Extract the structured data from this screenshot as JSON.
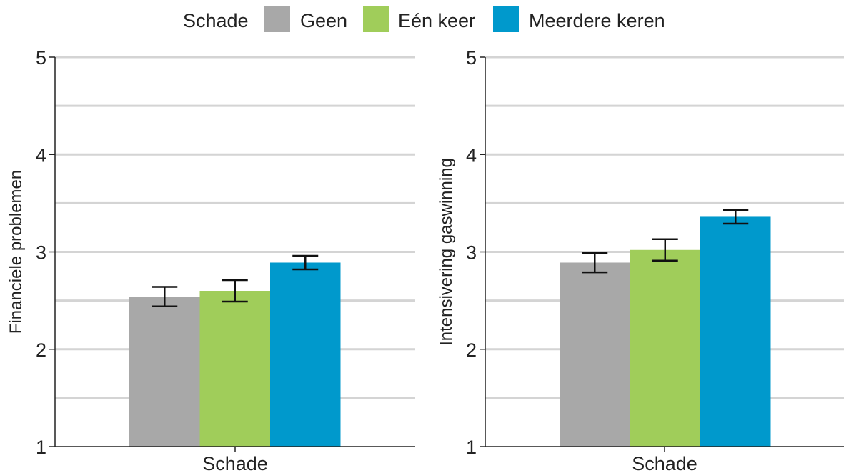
{
  "legend": {
    "title": "Schade",
    "items": [
      {
        "label": "Geen",
        "color": "#a8a8a8"
      },
      {
        "label": "Eén keer",
        "color": "#a0cd5a"
      },
      {
        "label": "Meerdere keren",
        "color": "#0099cc"
      }
    ]
  },
  "chart_data": [
    {
      "type": "bar",
      "xlabel": "Schade",
      "ylabel": "Financiele problemen",
      "ylim": [
        1,
        5
      ],
      "yticks": [
        "1",
        "2",
        "3",
        "4",
        "5"
      ],
      "grid": true,
      "legend_position": "top",
      "categories": [
        "Geen",
        "Eén keer",
        "Meerdere keren"
      ],
      "values": [
        2.54,
        2.6,
        2.89
      ],
      "error_low": [
        2.44,
        2.49,
        2.82
      ],
      "error_high": [
        2.64,
        2.71,
        2.96
      ]
    },
    {
      "type": "bar",
      "xlabel": "Schade",
      "ylabel": "Intensivering gaswinning",
      "ylim": [
        1,
        5
      ],
      "yticks": [
        "1",
        "2",
        "3",
        "4",
        "5"
      ],
      "grid": true,
      "legend_position": "top",
      "categories": [
        "Geen",
        "Eén keer",
        "Meerdere keren"
      ],
      "values": [
        2.89,
        3.02,
        3.36
      ],
      "error_low": [
        2.79,
        2.91,
        3.29
      ],
      "error_high": [
        2.99,
        3.13,
        3.43
      ]
    }
  ]
}
